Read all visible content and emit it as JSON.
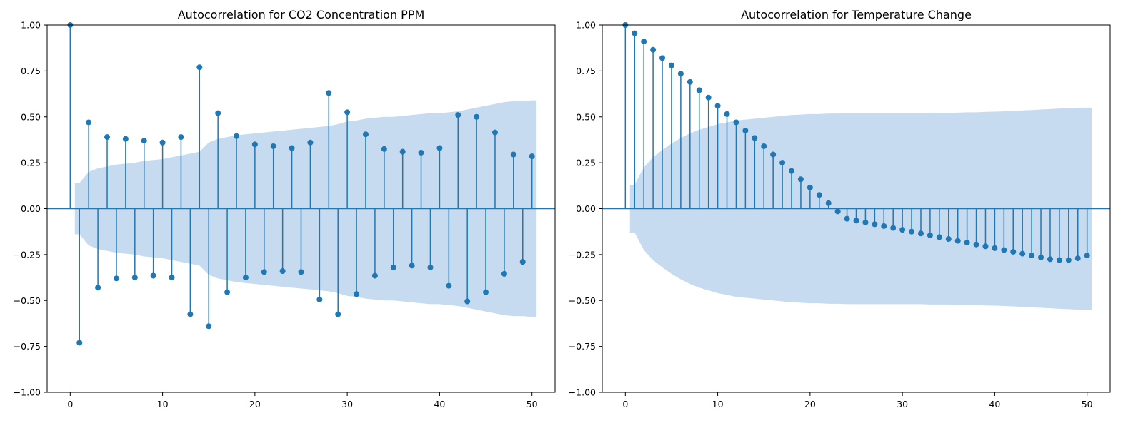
{
  "colors": {
    "stem": "#1f77b4",
    "band": "#c6dbef",
    "axis": "#000000"
  },
  "chart_data": [
    {
      "type": "stem",
      "title": "Autocorrelation for CO2 Concentration PPM",
      "xlabel": "",
      "ylabel": "",
      "xlim": [
        -2.5,
        52.5
      ],
      "ylim": [
        -1.0,
        1.0
      ],
      "xticks": [
        "0",
        "10",
        "20",
        "30",
        "40",
        "50"
      ],
      "yticks": [
        "1.00",
        "0.75",
        "0.50",
        "0.25",
        "0.00",
        "−0.25",
        "−0.50",
        "−0.75",
        "−1.00"
      ],
      "grid": false,
      "lags": [
        0,
        1,
        2,
        3,
        4,
        5,
        6,
        7,
        8,
        9,
        10,
        11,
        12,
        13,
        14,
        15,
        16,
        17,
        18,
        19,
        20,
        21,
        22,
        23,
        24,
        25,
        26,
        27,
        28,
        29,
        30,
        31,
        32,
        33,
        34,
        35,
        36,
        37,
        38,
        39,
        40,
        41,
        42,
        43,
        44,
        45,
        46,
        47,
        48,
        49,
        50
      ],
      "acf": [
        1.0,
        -0.73,
        0.47,
        -0.43,
        0.39,
        -0.38,
        0.38,
        -0.375,
        0.37,
        -0.365,
        0.36,
        -0.375,
        0.39,
        -0.575,
        0.77,
        -0.64,
        0.52,
        -0.455,
        0.395,
        -0.375,
        0.35,
        -0.345,
        0.34,
        -0.34,
        0.33,
        -0.345,
        0.36,
        -0.495,
        0.63,
        -0.575,
        0.525,
        -0.465,
        0.405,
        -0.365,
        0.325,
        -0.32,
        0.31,
        -0.31,
        0.305,
        -0.32,
        0.33,
        -0.42,
        0.51,
        -0.505,
        0.5,
        -0.455,
        0.415,
        -0.355,
        0.295,
        -0.29,
        0.285
      ],
      "confidence_band": [
        0.14,
        0.14,
        0.2,
        0.22,
        0.23,
        0.24,
        0.245,
        0.25,
        0.26,
        0.265,
        0.27,
        0.28,
        0.29,
        0.3,
        0.31,
        0.36,
        0.38,
        0.39,
        0.4,
        0.405,
        0.41,
        0.415,
        0.42,
        0.425,
        0.43,
        0.435,
        0.44,
        0.445,
        0.45,
        0.46,
        0.475,
        0.48,
        0.49,
        0.495,
        0.5,
        0.5,
        0.505,
        0.51,
        0.515,
        0.52,
        0.52,
        0.525,
        0.53,
        0.54,
        0.55,
        0.56,
        0.57,
        0.58,
        0.585,
        0.585,
        0.59
      ]
    },
    {
      "type": "stem",
      "title": "Autocorrelation for Temperature Change",
      "xlabel": "",
      "ylabel": "",
      "xlim": [
        -2.5,
        52.5
      ],
      "ylim": [
        -1.0,
        1.0
      ],
      "xticks": [
        "0",
        "10",
        "20",
        "30",
        "40",
        "50"
      ],
      "yticks": [
        "1.00",
        "0.75",
        "0.50",
        "0.25",
        "0.00",
        "−0.25",
        "−0.50",
        "−0.75",
        "−1.00"
      ],
      "grid": false,
      "lags": [
        0,
        1,
        2,
        3,
        4,
        5,
        6,
        7,
        8,
        9,
        10,
        11,
        12,
        13,
        14,
        15,
        16,
        17,
        18,
        19,
        20,
        21,
        22,
        23,
        24,
        25,
        26,
        27,
        28,
        29,
        30,
        31,
        32,
        33,
        34,
        35,
        36,
        37,
        38,
        39,
        40,
        41,
        42,
        43,
        44,
        45,
        46,
        47,
        48,
        49,
        50
      ],
      "acf": [
        1.0,
        0.955,
        0.91,
        0.865,
        0.82,
        0.78,
        0.735,
        0.69,
        0.645,
        0.605,
        0.56,
        0.515,
        0.47,
        0.425,
        0.385,
        0.34,
        0.295,
        0.25,
        0.205,
        0.16,
        0.115,
        0.075,
        0.03,
        -0.015,
        -0.055,
        -0.065,
        -0.075,
        -0.085,
        -0.095,
        -0.105,
        -0.115,
        -0.125,
        -0.135,
        -0.145,
        -0.155,
        -0.165,
        -0.175,
        -0.185,
        -0.195,
        -0.205,
        -0.215,
        -0.225,
        -0.235,
        -0.245,
        -0.255,
        -0.265,
        -0.275,
        -0.28,
        -0.28,
        -0.27,
        -0.255
      ],
      "confidence_band": [
        0.13,
        0.13,
        0.225,
        0.28,
        0.32,
        0.355,
        0.385,
        0.41,
        0.43,
        0.445,
        0.46,
        0.47,
        0.48,
        0.485,
        0.49,
        0.495,
        0.5,
        0.505,
        0.51,
        0.512,
        0.515,
        0.515,
        0.518,
        0.518,
        0.52,
        0.52,
        0.52,
        0.52,
        0.52,
        0.52,
        0.52,
        0.52,
        0.52,
        0.522,
        0.522,
        0.522,
        0.523,
        0.525,
        0.525,
        0.527,
        0.528,
        0.53,
        0.532,
        0.535,
        0.537,
        0.54,
        0.542,
        0.545,
        0.547,
        0.55,
        0.55
      ]
    }
  ]
}
